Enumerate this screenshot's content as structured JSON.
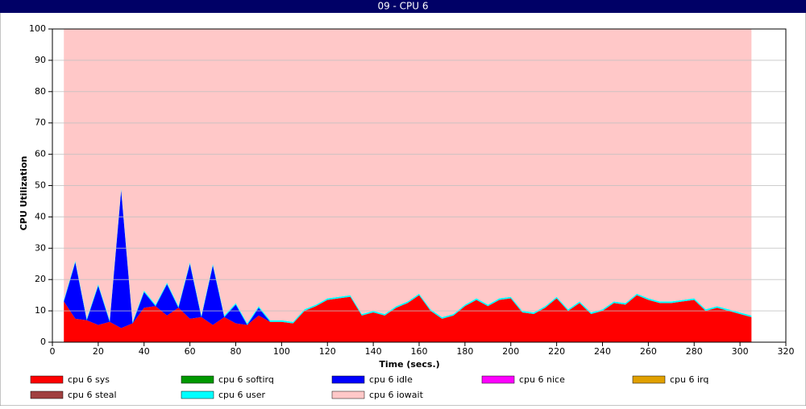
{
  "chart_data": {
    "type": "stacked_area",
    "title": "09 - CPU 6",
    "x_label": "Time (secs.)",
    "y_label": "CPU Utilization",
    "x": [
      5,
      10,
      15,
      20,
      25,
      30,
      35,
      40,
      45,
      50,
      55,
      60,
      65,
      70,
      75,
      80,
      85,
      90,
      95,
      100,
      105,
      110,
      115,
      120,
      125,
      130,
      135,
      140,
      145,
      150,
      155,
      160,
      165,
      170,
      175,
      180,
      185,
      190,
      195,
      200,
      205,
      210,
      215,
      220,
      225,
      230,
      235,
      240,
      245,
      250,
      255,
      260,
      265,
      270,
      275,
      280,
      285,
      290,
      295,
      300,
      305
    ],
    "xlim": [
      0,
      320
    ],
    "xticks": [
      0,
      20,
      40,
      60,
      80,
      100,
      120,
      140,
      160,
      180,
      200,
      220,
      240,
      260,
      280,
      300,
      320
    ],
    "ylim": [
      0,
      100
    ],
    "yticks": [
      0,
      10,
      20,
      30,
      40,
      50,
      60,
      70,
      80,
      90,
      100
    ],
    "grid": true,
    "series": [
      {
        "name": "cpu 6 sys",
        "color": "#ff0000",
        "values": [
          13,
          7.5,
          7,
          5.5,
          6.5,
          4.5,
          6,
          11,
          11.5,
          8.5,
          11,
          7.5,
          8,
          5.5,
          8,
          6,
          5.5,
          8.5,
          6.5,
          6.5,
          6,
          10,
          11.5,
          13.5,
          14,
          14.5,
          8.5,
          9.5,
          8.5,
          11,
          12.5,
          15,
          10,
          7.5,
          8.5,
          11.5,
          13.5,
          11.5,
          13.5,
          14,
          9.5,
          9,
          11,
          14,
          10,
          12.5,
          9,
          10,
          12.5,
          12,
          15,
          13.5,
          12.5,
          12.5,
          13,
          13.5,
          10,
          11,
          10,
          9,
          8
        ]
      },
      {
        "name": "cpu 6 softirq",
        "color": "#009900",
        "values": [
          0,
          0,
          0,
          0,
          0,
          0,
          0,
          0,
          0,
          0,
          0,
          0,
          0,
          0,
          0,
          0,
          0,
          0,
          0,
          0,
          0,
          0,
          0,
          0,
          0,
          0,
          0,
          0,
          0,
          0,
          0,
          0,
          0,
          0,
          0,
          0,
          0,
          0,
          0,
          0,
          0,
          0,
          0,
          0,
          0,
          0,
          0,
          0,
          0,
          0,
          0,
          0,
          0,
          0,
          0,
          0,
          0,
          0,
          0,
          0,
          0
        ]
      },
      {
        "name": "cpu 6 idle",
        "color": "#0000ff",
        "values": [
          0,
          18,
          0,
          12.5,
          0,
          44,
          0,
          5,
          0,
          10,
          0,
          17.5,
          0,
          19,
          0,
          6,
          0,
          2.5,
          0,
          0,
          0,
          0,
          0,
          0,
          0,
          0,
          0,
          0,
          0,
          0,
          0,
          0,
          0,
          0,
          0,
          0,
          0,
          0,
          0,
          0,
          0,
          0,
          0,
          0,
          0,
          0,
          0,
          0,
          0,
          0,
          0,
          0,
          0,
          0,
          0,
          0,
          0,
          0,
          0,
          0,
          0
        ]
      },
      {
        "name": "cpu 6 nice",
        "color": "#ff00ff",
        "values": [
          0,
          0,
          0,
          0,
          0,
          0,
          0,
          0,
          0,
          0,
          0,
          0,
          0,
          0,
          0,
          0,
          0,
          0,
          0,
          0,
          0,
          0,
          0,
          0,
          0,
          0,
          0,
          0,
          0,
          0,
          0,
          0,
          0,
          0,
          0,
          0,
          0,
          0,
          0,
          0,
          0,
          0,
          0,
          0,
          0,
          0,
          0,
          0,
          0,
          0,
          0,
          0,
          0,
          0,
          0,
          0,
          0,
          0,
          0,
          0,
          0
        ]
      },
      {
        "name": "cpu 6 irq",
        "color": "#e0a000",
        "values": [
          0,
          0,
          0,
          0,
          0,
          0,
          0,
          0,
          0,
          0,
          0,
          0,
          0,
          0,
          0,
          0,
          0,
          0,
          0,
          0,
          0,
          0,
          0,
          0,
          0,
          0,
          0,
          0,
          0,
          0,
          0,
          0,
          0,
          0,
          0,
          0,
          0,
          0,
          0,
          0,
          0,
          0,
          0,
          0,
          0,
          0,
          0,
          0,
          0,
          0,
          0,
          0,
          0,
          0,
          0,
          0,
          0,
          0,
          0,
          0,
          0
        ]
      },
      {
        "name": "cpu 6 steal",
        "color": "#a04040",
        "values": [
          0,
          0,
          0,
          0,
          0,
          0,
          0,
          0,
          0,
          0,
          0,
          0,
          0,
          0,
          0,
          0,
          0,
          0,
          0,
          0,
          0,
          0,
          0,
          0,
          0,
          0,
          0,
          0,
          0,
          0,
          0,
          0,
          0,
          0,
          0,
          0,
          0,
          0,
          0,
          0,
          0,
          0,
          0,
          0,
          0,
          0,
          0,
          0,
          0,
          0,
          0,
          0,
          0,
          0,
          0,
          0,
          0,
          0,
          0,
          0,
          0
        ]
      },
      {
        "name": "cpu 6 user",
        "color": "#00ffff",
        "values": [
          0.5,
          0.5,
          0.5,
          0.5,
          0.5,
          0.5,
          0.5,
          0.5,
          0.5,
          0.5,
          0.5,
          0.5,
          0.5,
          0.5,
          0.5,
          0.5,
          0.5,
          0.5,
          0.5,
          0.5,
          0.5,
          0.5,
          0.5,
          0.5,
          0.5,
          0.5,
          0.5,
          0.5,
          0.5,
          0.5,
          0.5,
          0.5,
          0.5,
          0.5,
          0.5,
          0.5,
          0.5,
          0.5,
          0.5,
          0.5,
          0.5,
          0.5,
          0.5,
          0.5,
          0.5,
          0.5,
          0.5,
          0.5,
          0.5,
          0.5,
          0.5,
          0.5,
          0.5,
          0.5,
          0.5,
          0.5,
          0.5,
          0.5,
          0.5,
          0.5,
          0.5
        ]
      },
      {
        "name": "cpu 6 iowait",
        "color": "#ffc8c8",
        "values": [
          86.5,
          74,
          92.5,
          81.5,
          93,
          51,
          93.5,
          83.5,
          88,
          81,
          88.5,
          74.5,
          91.5,
          75,
          91.5,
          87.5,
          94,
          88.5,
          93,
          93,
          93.5,
          89.5,
          88,
          86,
          85.5,
          85,
          91,
          90,
          91,
          88.5,
          87,
          84.5,
          89.5,
          92,
          91,
          88,
          86,
          88,
          86,
          85.5,
          90,
          90.5,
          88.5,
          85.5,
          89.5,
          87,
          90.5,
          89.5,
          87,
          87.5,
          84.5,
          86,
          87,
          87,
          86.5,
          86,
          89.5,
          88.5,
          89.5,
          90.5,
          91.5
        ]
      }
    ]
  }
}
